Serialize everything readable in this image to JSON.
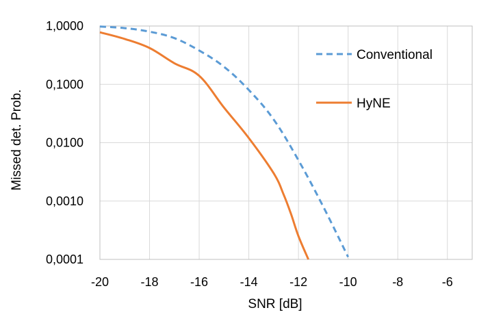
{
  "chart_data": {
    "type": "line",
    "title": "",
    "xlabel": "SNR [dB]",
    "ylabel": "Missed det. Prob.",
    "xlim": [
      -20,
      -5
    ],
    "ylim": [
      0.0001,
      1.0
    ],
    "y_scale": "log",
    "grid": true,
    "legend_placement": "right",
    "x_ticks": [
      -20,
      -18,
      -16,
      -14,
      -12,
      -10,
      -8,
      -6
    ],
    "x_tick_labels": [
      "-20",
      "-18",
      "-16",
      "-14",
      "-12",
      "-10",
      "-8",
      "-6"
    ],
    "y_ticks": [
      1.0,
      0.1,
      0.01,
      0.001,
      0.0001
    ],
    "y_tick_labels": [
      "1,0000",
      "0,1000",
      "0,0100",
      "0,0010",
      "0,0001"
    ],
    "series": [
      {
        "name": "Conventional",
        "color": "#5B9BD5",
        "dash": "dashed",
        "x": [
          -20,
          -19,
          -18,
          -17,
          -16,
          -15,
          -14,
          -13,
          -12,
          -11,
          -10
        ],
        "y": [
          0.98,
          0.92,
          0.8,
          0.62,
          0.38,
          0.2,
          0.08,
          0.025,
          0.005,
          0.0008,
          0.00011
        ]
      },
      {
        "name": "HyNE",
        "color": "#ED7D31",
        "dash": "solid",
        "x": [
          -20,
          -19,
          -18,
          -17,
          -16,
          -15,
          -14,
          -13,
          -12.6,
          -12.3,
          -12.0,
          -11.6
        ],
        "y": [
          0.78,
          0.6,
          0.42,
          0.23,
          0.14,
          0.04,
          0.012,
          0.003,
          0.0013,
          0.0006,
          0.00025,
          0.0001
        ]
      }
    ]
  }
}
